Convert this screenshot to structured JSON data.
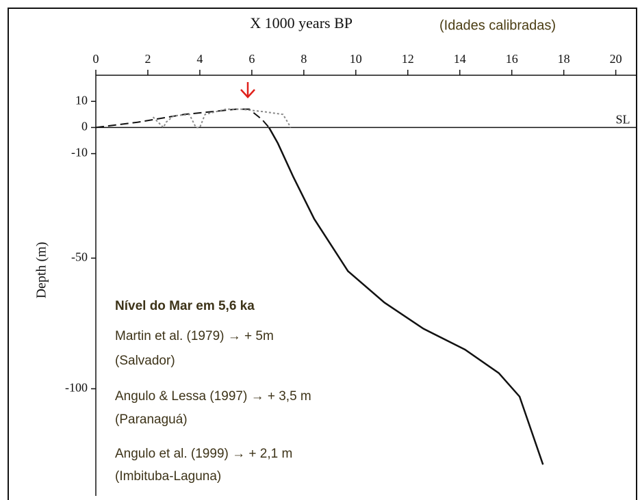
{
  "chart_data": {
    "type": "line",
    "title": "X  1000 years BP",
    "subtitle": "(Idades calibradas)",
    "y_label": "Depth (m)",
    "zero_label": "SL",
    "annotations": [
      "Nível do Mar em 5,6 ka",
      "Martin et al. (1979) → + 5m",
      "(Salvador)",
      "Angulo & Lessa (1997) → + 3,5 m",
      "(Paranaguá)",
      "Angulo et al. (1999) → + 2,1 m",
      "(Imbituba-Laguna)"
    ],
    "xlim": [
      0,
      20.8
    ],
    "xticks": [
      0,
      2,
      4,
      6,
      8,
      10,
      12,
      14,
      16,
      18,
      20
    ],
    "ylim": [
      -141,
      20
    ],
    "yticks": [
      10,
      0,
      -10,
      -50,
      -100
    ],
    "series": [
      {
        "color": "#111111",
        "style": "solid",
        "x": [
          6.66,
          7.0,
          7.6,
          8.4,
          9.7,
          11.1,
          12.6,
          14.2,
          15.5,
          16.3,
          17.2
        ],
        "values": [
          0,
          -6,
          -19,
          -35,
          -55,
          -67,
          -77,
          -85,
          -94,
          -103,
          -129
        ]
      },
      {
        "color": "#111111",
        "style": "dashed",
        "x": [
          0,
          1.6,
          3.4,
          5.4,
          5.9,
          6.4,
          6.66
        ],
        "values": [
          0,
          2,
          5,
          7,
          7,
          3,
          0
        ]
      },
      {
        "color": "#888888",
        "style": "dotted",
        "x": [
          2.2,
          2.5,
          2.6,
          2.7,
          3.0,
          3.6,
          3.85,
          4.0,
          4.2,
          5.0,
          5.6,
          6.5,
          7.2,
          7.5
        ],
        "values": [
          4,
          1,
          0,
          2,
          4.5,
          5,
          0,
          0,
          5,
          7,
          7,
          6,
          5,
          0
        ]
      }
    ]
  }
}
